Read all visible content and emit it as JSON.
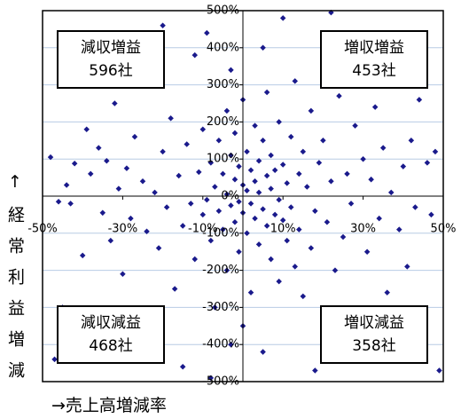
{
  "chart_data": {
    "type": "scatter",
    "x_label": "→売上高増減率",
    "y_label": "↑経常利益増減",
    "xlim": [
      -50,
      50
    ],
    "ylim": [
      -500,
      500
    ],
    "xticks": [
      {
        "value": -50,
        "label": "-50%"
      },
      {
        "value": -30,
        "label": "-30%"
      },
      {
        "value": -10,
        "label": "-10%"
      },
      {
        "value": 10,
        "label": "10%"
      },
      {
        "value": 30,
        "label": "30%"
      },
      {
        "value": 50,
        "label": "50%"
      }
    ],
    "yticks": [
      {
        "value": 500,
        "label": "500%"
      },
      {
        "value": 400,
        "label": "400%"
      },
      {
        "value": 300,
        "label": "300%"
      },
      {
        "value": 200,
        "label": "200%"
      },
      {
        "value": 100,
        "label": "100%"
      },
      {
        "value": 0,
        "label": "0%"
      },
      {
        "value": -100,
        "label": "-100%"
      },
      {
        "value": -200,
        "label": "-200%"
      },
      {
        "value": -300,
        "label": "-300%"
      },
      {
        "value": -400,
        "label": "-400%"
      },
      {
        "value": -500,
        "label": "-500%"
      }
    ],
    "grid": true,
    "color": "#1a1a8c",
    "annotations": [
      {
        "label": "減収増益",
        "count": "596社",
        "corner": "top-left"
      },
      {
        "label": "増収増益",
        "count": "453社",
        "corner": "top-right"
      },
      {
        "label": "減収減益",
        "count": "468社",
        "corner": "bottom-left"
      },
      {
        "label": "増収減益",
        "count": "358社",
        "corner": "bottom-right"
      }
    ],
    "x": [
      -48,
      -46,
      -44,
      -42,
      -40,
      -38,
      -37,
      -36,
      -35,
      -34,
      -33,
      -32,
      -31,
      -30,
      -29,
      -28,
      -27,
      -26,
      -25,
      -24,
      -23,
      -22,
      -21,
      -20,
      -19,
      -18,
      -17,
      -16,
      -15,
      -14,
      -13,
      -12,
      -12,
      -11,
      -10,
      -10,
      -9,
      -9,
      -8,
      -8,
      -7,
      -7,
      -6,
      -6,
      -5,
      -5,
      -4,
      -4,
      -4,
      -3,
      -3,
      -3,
      -2,
      -2,
      -2,
      -1,
      -1,
      -1,
      0,
      0,
      0,
      1,
      1,
      1,
      2,
      2,
      2,
      3,
      3,
      3,
      4,
      4,
      4,
      5,
      5,
      5,
      6,
      6,
      6,
      7,
      7,
      7,
      8,
      8,
      9,
      9,
      9,
      10,
      10,
      11,
      11,
      12,
      12,
      13,
      13,
      14,
      14,
      15,
      15,
      16,
      17,
      17,
      18,
      19,
      20,
      20,
      21,
      22,
      23,
      24,
      25,
      26,
      27,
      28,
      29,
      30,
      31,
      32,
      33,
      34,
      35,
      36,
      37,
      38,
      39,
      40,
      41,
      42,
      43,
      44,
      45,
      46,
      47,
      48,
      49,
      -47,
      -43,
      -39,
      -20,
      -15,
      10,
      22,
      -8,
      30,
      -3,
      5,
      -25,
      35,
      -45,
      18,
      0
    ],
    "y": [
      105,
      -15,
      30,
      88,
      -160,
      60,
      -310,
      130,
      -45,
      95,
      -120,
      250,
      20,
      -210,
      75,
      -60,
      160,
      -380,
      40,
      -95,
      300,
      10,
      -140,
      120,
      -30,
      210,
      -250,
      55,
      -80,
      140,
      -20,
      380,
      -170,
      65,
      -50,
      180,
      -10,
      440,
      90,
      -120,
      25,
      -300,
      150,
      -40,
      60,
      -90,
      230,
      5,
      -200,
      110,
      -25,
      340,
      45,
      -70,
      170,
      -15,
      80,
      -150,
      30,
      -45,
      260,
      15,
      -100,
      120,
      -20,
      70,
      -260,
      40,
      -60,
      190,
      10,
      -130,
      95,
      -35,
      150,
      -420,
      55,
      -80,
      280,
      20,
      -170,
      110,
      -50,
      70,
      -10,
      200,
      -230,
      85,
      -65,
      35,
      -120,
      160,
      -30,
      310,
      -190,
      60,
      -90,
      120,
      -270,
      25,
      -140,
      230,
      -40,
      90,
      -330,
      150,
      -70,
      40,
      -200,
      270,
      -110,
      60,
      -20,
      190,
      -380,
      100,
      -150,
      45,
      240,
      -60,
      130,
      -260,
      10,
      350,
      -90,
      80,
      -190,
      150,
      -30,
      260,
      -320,
      90,
      -50,
      120,
      -470,
      -440,
      -20,
      180,
      460,
      -460,
      480,
      495,
      -490,
      -440,
      -400,
      400,
      420,
      390,
      -300,
      -470,
      -350
    ]
  }
}
